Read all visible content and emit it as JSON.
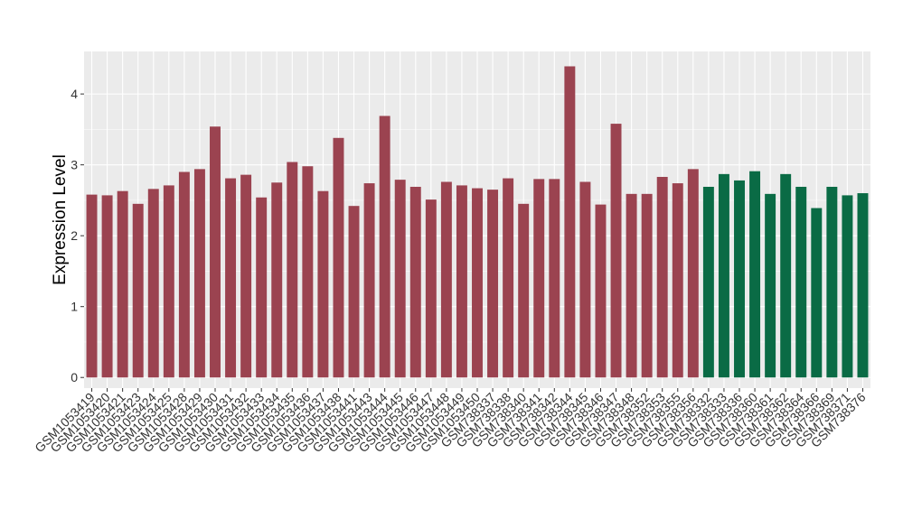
{
  "chart_data": {
    "type": "bar",
    "ylabel": "Expression Level",
    "xlabel": "",
    "ylim": [
      -0.15,
      4.6
    ],
    "yticks": [
      0,
      1,
      2,
      3,
      4
    ],
    "grid": true,
    "legend": "none",
    "colors": {
      "group_a": "#9b4350",
      "group_b": "#0a6b45",
      "panel": "#ebebeb",
      "gridline": "#ffffff"
    },
    "categories": [
      "GSM1053419",
      "GSM1053420",
      "GSM1053421",
      "GSM1053423",
      "GSM1053424",
      "GSM1053425",
      "GSM1053428",
      "GSM1053429",
      "GSM1053430",
      "GSM1053431",
      "GSM1053432",
      "GSM1053433",
      "GSM1053434",
      "GSM1053435",
      "GSM1053436",
      "GSM1053437",
      "GSM1053438",
      "GSM1053441",
      "GSM1053443",
      "GSM1053444",
      "GSM1053445",
      "GSM1053446",
      "GSM1053447",
      "GSM1053448",
      "GSM1053449",
      "GSM1053450",
      "GSM738337",
      "GSM738338",
      "GSM738340",
      "GSM738341",
      "GSM738342",
      "GSM738344",
      "GSM738345",
      "GSM738346",
      "GSM738347",
      "GSM738348",
      "GSM738352",
      "GSM738353",
      "GSM738355",
      "GSM738356",
      "GSM738332",
      "GSM738333",
      "GSM738336",
      "GSM738360",
      "GSM738361",
      "GSM738362",
      "GSM738364",
      "GSM738366",
      "GSM738369",
      "GSM738371",
      "GSM738376"
    ],
    "values": [
      2.58,
      2.57,
      2.63,
      2.45,
      2.66,
      2.71,
      2.9,
      2.94,
      3.54,
      2.81,
      2.86,
      2.54,
      2.75,
      3.04,
      2.98,
      2.63,
      3.38,
      2.42,
      2.74,
      3.69,
      2.79,
      2.69,
      2.51,
      2.76,
      2.71,
      2.67,
      2.65,
      2.81,
      2.45,
      2.8,
      2.8,
      4.39,
      2.76,
      2.44,
      3.58,
      2.59,
      2.59,
      2.83,
      2.74,
      2.94,
      2.69,
      2.87,
      2.78,
      2.91,
      2.59,
      2.87,
      2.69,
      2.39,
      2.69,
      2.57,
      2.6
    ],
    "groups": [
      "a",
      "a",
      "a",
      "a",
      "a",
      "a",
      "a",
      "a",
      "a",
      "a",
      "a",
      "a",
      "a",
      "a",
      "a",
      "a",
      "a",
      "a",
      "a",
      "a",
      "a",
      "a",
      "a",
      "a",
      "a",
      "a",
      "a",
      "a",
      "a",
      "a",
      "a",
      "a",
      "a",
      "a",
      "a",
      "a",
      "a",
      "a",
      "a",
      "a",
      "b",
      "b",
      "b",
      "b",
      "b",
      "b",
      "b",
      "b",
      "b",
      "b",
      "b"
    ]
  }
}
